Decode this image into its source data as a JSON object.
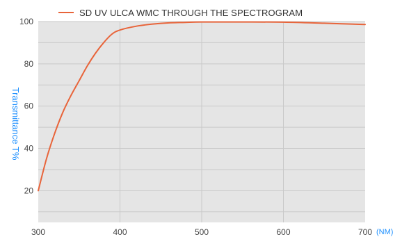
{
  "chart_data": {
    "type": "line",
    "title": "",
    "legend": {
      "position": "top-left",
      "entries": [
        "SD UV ULCA WMC THROUGH THE SPECTROGRAM"
      ]
    },
    "ylabel": "Transmittance T%",
    "xunit": "(NM)",
    "xlim": [
      300,
      700
    ],
    "ylim": [
      5,
      100
    ],
    "grid": true,
    "x_ticks": [
      300,
      400,
      500,
      600,
      700
    ],
    "y_ticks": [
      20,
      40,
      60,
      80,
      100
    ],
    "series": [
      {
        "name": "SD UV ULCA WMC THROUGH THE SPECTROGRAM",
        "color": "#e8643a",
        "x": [
          300,
          310,
          320,
          330,
          340,
          350,
          360,
          370,
          380,
          390,
          400,
          420,
          440,
          460,
          480,
          500,
          550,
          600,
          650,
          700
        ],
        "y": [
          20,
          35,
          47,
          57,
          65,
          72,
          79,
          85,
          90,
          94,
          96,
          97.8,
          98.8,
          99.4,
          99.6,
          99.8,
          99.8,
          99.7,
          99.2,
          98.6
        ]
      }
    ]
  },
  "colors": {
    "plot_bg": "#e5e5e5",
    "grid": "#c9c9c9",
    "axis_title": "#1e90ff",
    "line": "#e8643a"
  }
}
